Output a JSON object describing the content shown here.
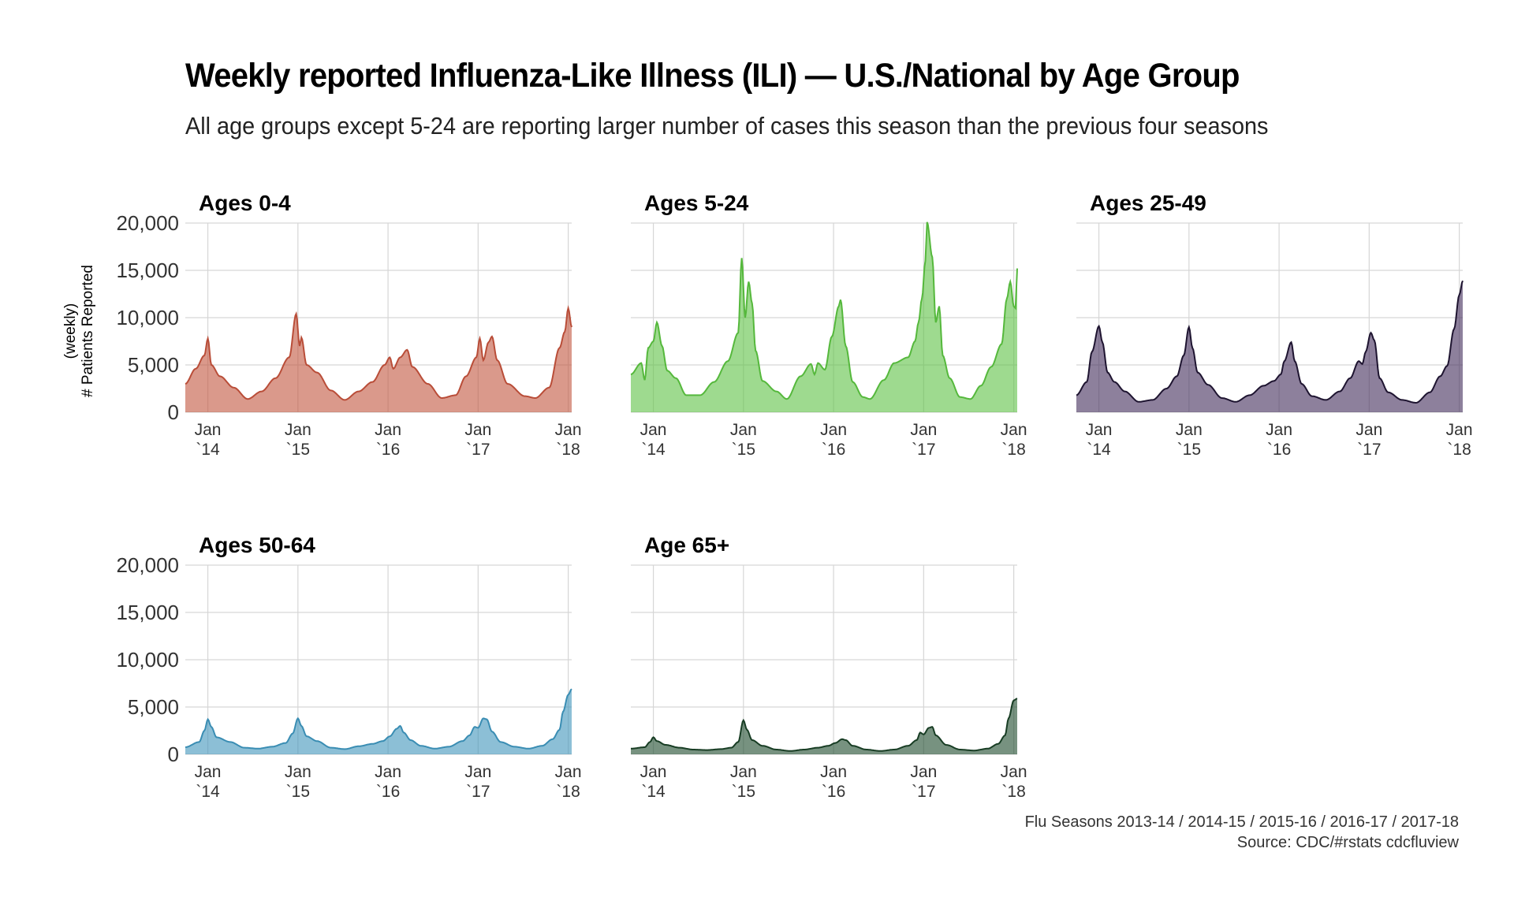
{
  "title": "Weekly reported Influenza-Like Illness (ILI) — U.S./National by Age Group",
  "subtitle": "All age groups except 5-24 are reporting larger number of cases this season than the previous four seasons",
  "caption_line1": "Flu Seasons 2013-14 / 2014-15 / 2015-16 / 2016-17 / 2017-18",
  "caption_line2": "Source: CDC/#rstats cdcfluview",
  "chart_data": {
    "type": "area",
    "ylabel_line1": "(weekly)",
    "ylabel_line2": "# Patients Reported",
    "ylim": [
      0,
      20000
    ],
    "yticks": [
      0,
      5000,
      10000,
      15000,
      20000
    ],
    "ytick_labels": [
      "0",
      "5,000",
      "10,000",
      "15,000",
      "20,000"
    ],
    "xticks": [
      {
        "week": 13,
        "line1": "Jan",
        "line2": "`14"
      },
      {
        "week": 65,
        "line1": "Jan",
        "line2": "`15"
      },
      {
        "week": 117,
        "line1": "Jan",
        "line2": "`16"
      },
      {
        "week": 169,
        "line1": "Jan",
        "line2": "`17"
      },
      {
        "week": 221,
        "line1": "Jan",
        "line2": "`18"
      }
    ],
    "x_range_weeks": [
      0,
      223
    ],
    "grid": true,
    "panels": [
      {
        "name": "Ages 0-4",
        "fill": "#c2553e",
        "line": "#b94d38",
        "knots": [
          [
            0,
            3000
          ],
          [
            6,
            4600
          ],
          [
            11,
            6000
          ],
          [
            13,
            7800
          ],
          [
            15,
            5000
          ],
          [
            20,
            3800
          ],
          [
            28,
            2600
          ],
          [
            36,
            1400
          ],
          [
            44,
            2200
          ],
          [
            52,
            3600
          ],
          [
            60,
            5800
          ],
          [
            64,
            10400
          ],
          [
            66,
            7000
          ],
          [
            67,
            7900
          ],
          [
            70,
            5000
          ],
          [
            76,
            4200
          ],
          [
            84,
            2300
          ],
          [
            92,
            1300
          ],
          [
            100,
            2200
          ],
          [
            108,
            3200
          ],
          [
            115,
            5000
          ],
          [
            118,
            5800
          ],
          [
            120,
            4600
          ],
          [
            124,
            5800
          ],
          [
            128,
            6600
          ],
          [
            131,
            4800
          ],
          [
            140,
            3000
          ],
          [
            148,
            1500
          ],
          [
            156,
            1800
          ],
          [
            162,
            3800
          ],
          [
            168,
            5800
          ],
          [
            170,
            7800
          ],
          [
            172,
            5500
          ],
          [
            175,
            7400
          ],
          [
            177,
            8000
          ],
          [
            180,
            5500
          ],
          [
            186,
            3000
          ],
          [
            196,
            1700
          ],
          [
            202,
            1500
          ],
          [
            210,
            2600
          ],
          [
            216,
            6800
          ],
          [
            219,
            8500
          ],
          [
            221,
            11000
          ],
          [
            223,
            9000
          ]
        ]
      },
      {
        "name": "Ages 5-24",
        "fill": "#5ec245",
        "line": "#55b83c",
        "knots": [
          [
            0,
            4000
          ],
          [
            6,
            5200
          ],
          [
            8,
            3400
          ],
          [
            10,
            6800
          ],
          [
            13,
            7500
          ],
          [
            15,
            9500
          ],
          [
            18,
            7000
          ],
          [
            21,
            4400
          ],
          [
            26,
            3600
          ],
          [
            32,
            1800
          ],
          [
            40,
            1800
          ],
          [
            48,
            3200
          ],
          [
            56,
            5400
          ],
          [
            62,
            8400
          ],
          [
            64,
            16300
          ],
          [
            66,
            10000
          ],
          [
            68,
            13800
          ],
          [
            70,
            11500
          ],
          [
            72,
            6500
          ],
          [
            76,
            3300
          ],
          [
            84,
            2200
          ],
          [
            90,
            1400
          ],
          [
            98,
            3800
          ],
          [
            104,
            5100
          ],
          [
            106,
            4000
          ],
          [
            108,
            5200
          ],
          [
            112,
            4500
          ],
          [
            116,
            8000
          ],
          [
            120,
            11200
          ],
          [
            121,
            11900
          ],
          [
            124,
            7000
          ],
          [
            128,
            3200
          ],
          [
            134,
            1600
          ],
          [
            138,
            1400
          ],
          [
            146,
            3400
          ],
          [
            152,
            5200
          ],
          [
            160,
            5800
          ],
          [
            164,
            7500
          ],
          [
            166,
            9500
          ],
          [
            168,
            12000
          ],
          [
            170,
            16000
          ],
          [
            171,
            20100
          ],
          [
            174,
            16400
          ],
          [
            176,
            9500
          ],
          [
            178,
            11200
          ],
          [
            180,
            6000
          ],
          [
            184,
            3600
          ],
          [
            190,
            1600
          ],
          [
            196,
            1400
          ],
          [
            202,
            2800
          ],
          [
            208,
            4800
          ],
          [
            214,
            7200
          ],
          [
            217,
            12000
          ],
          [
            219,
            13800
          ],
          [
            221,
            11200
          ],
          [
            222,
            11000
          ],
          [
            223,
            15200
          ]
        ]
      },
      {
        "name": "Ages 25-49",
        "fill": "#412b5a",
        "line": "#1e1430",
        "knots": [
          [
            0,
            1800
          ],
          [
            6,
            3200
          ],
          [
            9,
            6400
          ],
          [
            13,
            9100
          ],
          [
            15,
            7400
          ],
          [
            18,
            4200
          ],
          [
            22,
            3200
          ],
          [
            28,
            2200
          ],
          [
            36,
            1100
          ],
          [
            44,
            1300
          ],
          [
            52,
            2500
          ],
          [
            58,
            3800
          ],
          [
            62,
            6000
          ],
          [
            65,
            9000
          ],
          [
            67,
            6800
          ],
          [
            70,
            4200
          ],
          [
            76,
            2900
          ],
          [
            84,
            1500
          ],
          [
            92,
            1100
          ],
          [
            100,
            1800
          ],
          [
            108,
            2800
          ],
          [
            114,
            3300
          ],
          [
            118,
            4000
          ],
          [
            120,
            5400
          ],
          [
            124,
            7400
          ],
          [
            126,
            5400
          ],
          [
            130,
            3000
          ],
          [
            136,
            1700
          ],
          [
            144,
            1300
          ],
          [
            152,
            2200
          ],
          [
            158,
            3600
          ],
          [
            163,
            5400
          ],
          [
            165,
            5100
          ],
          [
            167,
            6400
          ],
          [
            170,
            8400
          ],
          [
            172,
            7600
          ],
          [
            175,
            3600
          ],
          [
            180,
            2100
          ],
          [
            188,
            1300
          ],
          [
            196,
            1000
          ],
          [
            204,
            2100
          ],
          [
            210,
            3800
          ],
          [
            214,
            4900
          ],
          [
            218,
            8800
          ],
          [
            221,
            12400
          ],
          [
            223,
            13900
          ]
        ]
      },
      {
        "name": "Ages 50-64",
        "fill": "#3f95ba",
        "line": "#3a8db3",
        "knots": [
          [
            0,
            750
          ],
          [
            8,
            1300
          ],
          [
            11,
            2500
          ],
          [
            13,
            3700
          ],
          [
            15,
            2900
          ],
          [
            18,
            1800
          ],
          [
            26,
            1300
          ],
          [
            34,
            700
          ],
          [
            42,
            600
          ],
          [
            50,
            800
          ],
          [
            58,
            1200
          ],
          [
            62,
            2200
          ],
          [
            65,
            3800
          ],
          [
            67,
            3000
          ],
          [
            70,
            1900
          ],
          [
            76,
            1400
          ],
          [
            84,
            700
          ],
          [
            92,
            550
          ],
          [
            100,
            850
          ],
          [
            108,
            1100
          ],
          [
            114,
            1400
          ],
          [
            118,
            1900
          ],
          [
            122,
            2700
          ],
          [
            124,
            3000
          ],
          [
            126,
            2300
          ],
          [
            130,
            1500
          ],
          [
            136,
            900
          ],
          [
            144,
            600
          ],
          [
            152,
            800
          ],
          [
            160,
            1400
          ],
          [
            164,
            2000
          ],
          [
            167,
            2900
          ],
          [
            169,
            2800
          ],
          [
            172,
            3800
          ],
          [
            174,
            3700
          ],
          [
            177,
            2400
          ],
          [
            182,
            1300
          ],
          [
            190,
            800
          ],
          [
            198,
            600
          ],
          [
            206,
            900
          ],
          [
            212,
            1600
          ],
          [
            216,
            2600
          ],
          [
            218,
            4500
          ],
          [
            221,
            6300
          ],
          [
            223,
            6900
          ]
        ]
      },
      {
        "name": "Age 65+",
        "fill": "#1d4a2c",
        "line": "#183d24",
        "knots": [
          [
            0,
            600
          ],
          [
            8,
            750
          ],
          [
            11,
            1300
          ],
          [
            13,
            1800
          ],
          [
            15,
            1400
          ],
          [
            20,
            1000
          ],
          [
            28,
            700
          ],
          [
            36,
            500
          ],
          [
            44,
            450
          ],
          [
            52,
            550
          ],
          [
            58,
            700
          ],
          [
            62,
            1300
          ],
          [
            65,
            3600
          ],
          [
            67,
            2600
          ],
          [
            70,
            1500
          ],
          [
            76,
            900
          ],
          [
            84,
            500
          ],
          [
            92,
            350
          ],
          [
            100,
            500
          ],
          [
            108,
            700
          ],
          [
            114,
            900
          ],
          [
            118,
            1200
          ],
          [
            122,
            1600
          ],
          [
            124,
            1500
          ],
          [
            128,
            900
          ],
          [
            136,
            500
          ],
          [
            144,
            350
          ],
          [
            152,
            500
          ],
          [
            160,
            900
          ],
          [
            165,
            1500
          ],
          [
            167,
            2300
          ],
          [
            169,
            2100
          ],
          [
            172,
            2800
          ],
          [
            174,
            2900
          ],
          [
            176,
            2000
          ],
          [
            182,
            1000
          ],
          [
            190,
            500
          ],
          [
            198,
            400
          ],
          [
            206,
            600
          ],
          [
            212,
            1100
          ],
          [
            216,
            2000
          ],
          [
            218,
            3800
          ],
          [
            221,
            5700
          ],
          [
            223,
            5900
          ]
        ]
      }
    ]
  }
}
